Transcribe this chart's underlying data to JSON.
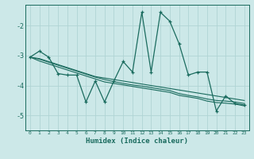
{
  "x": [
    0,
    1,
    2,
    3,
    4,
    5,
    6,
    7,
    8,
    9,
    10,
    11,
    12,
    13,
    14,
    15,
    16,
    17,
    18,
    19,
    20,
    21,
    22,
    23
  ],
  "y_main": [
    -3.05,
    -2.85,
    -3.05,
    -3.6,
    -3.65,
    -3.65,
    -4.55,
    -3.85,
    -4.55,
    -3.85,
    -3.2,
    -3.55,
    -1.55,
    -3.55,
    -1.55,
    -1.85,
    -2.6,
    -3.65,
    -3.55,
    -3.55,
    -4.85,
    -4.35,
    -4.6,
    -4.65
  ],
  "y_trend1": [
    -3.05,
    -3.1,
    -3.2,
    -3.3,
    -3.4,
    -3.5,
    -3.6,
    -3.7,
    -3.75,
    -3.8,
    -3.85,
    -3.9,
    -3.95,
    -4.0,
    -4.05,
    -4.1,
    -4.15,
    -4.2,
    -4.25,
    -4.3,
    -4.35,
    -4.4,
    -4.45,
    -4.5
  ],
  "y_trend2": [
    -3.05,
    -3.12,
    -3.22,
    -3.32,
    -3.42,
    -3.52,
    -3.62,
    -3.72,
    -3.8,
    -3.87,
    -3.93,
    -3.98,
    -4.02,
    -4.07,
    -4.12,
    -4.17,
    -4.27,
    -4.33,
    -4.38,
    -4.45,
    -4.5,
    -4.52,
    -4.55,
    -4.6
  ],
  "y_trend3": [
    -3.05,
    -3.18,
    -3.28,
    -3.38,
    -3.48,
    -3.58,
    -3.68,
    -3.78,
    -3.88,
    -3.93,
    -3.98,
    -4.03,
    -4.08,
    -4.13,
    -4.18,
    -4.23,
    -4.33,
    -4.38,
    -4.43,
    -4.52,
    -4.57,
    -4.59,
    -4.62,
    -4.68
  ],
  "line_color": "#1a6b5e",
  "bg_color": "#cce8e8",
  "grid_color": "#b0d4d4",
  "xlabel": "Humidex (Indice chaleur)",
  "ylim": [
    -5.5,
    -1.3
  ],
  "xlim": [
    -0.5,
    23.5
  ],
  "yticks": [
    -5,
    -4,
    -3,
    -2
  ],
  "xticks": [
    0,
    1,
    2,
    3,
    4,
    5,
    6,
    7,
    8,
    9,
    10,
    11,
    12,
    13,
    14,
    15,
    16,
    17,
    18,
    19,
    20,
    21,
    22,
    23
  ]
}
